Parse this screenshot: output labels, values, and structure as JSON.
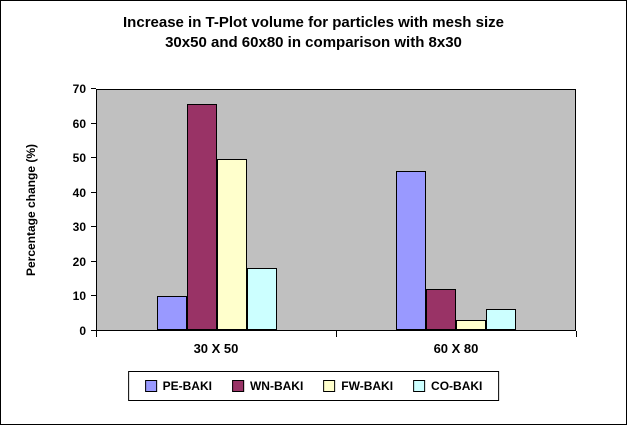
{
  "chart_data": {
    "type": "bar",
    "title": "Increase in T-Plot volume for particles with mesh size 30x50 and 60x80 in comparison with 8x30",
    "title_lines": [
      "Increase in T-Plot volume for particles with mesh size",
      "30x50 and 60x80 in comparison with 8x30"
    ],
    "xlabel": "",
    "ylabel": "Percentage change (%)",
    "categories": [
      "30 X 50",
      "60 X 80"
    ],
    "series": [
      {
        "name": "PE-BAKI",
        "color": "#9999ff",
        "values": [
          10,
          46.5
        ]
      },
      {
        "name": "WN-BAKI",
        "color": "#993366",
        "values": [
          66,
          12
        ]
      },
      {
        "name": "FW-BAKI",
        "color": "#ffffcc",
        "values": [
          50,
          3
        ]
      },
      {
        "name": "CO-BAKI",
        "color": "#ccffff",
        "values": [
          18,
          6
        ]
      }
    ],
    "ylim": [
      0,
      70
    ],
    "yticks": [
      0,
      10,
      20,
      30,
      40,
      50,
      60,
      70
    ],
    "grid": false,
    "legend_position": "bottom",
    "plot_background": "#c0c0c0"
  }
}
